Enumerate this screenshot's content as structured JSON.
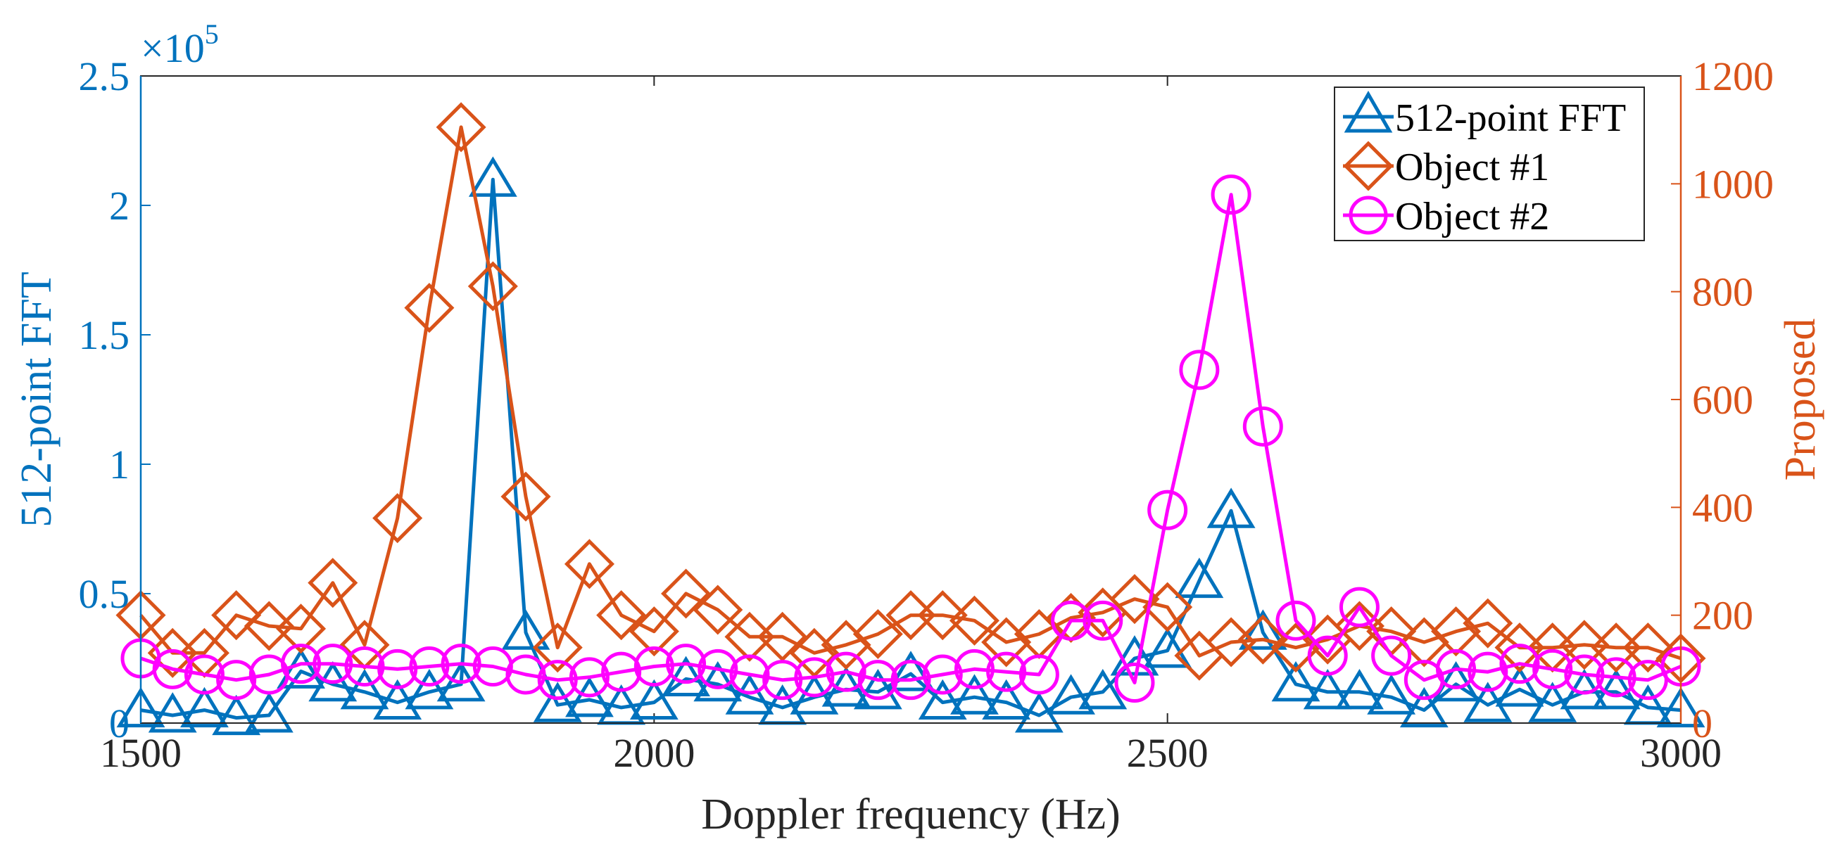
{
  "chart_data": {
    "type": "line",
    "xlabel": "Doppler frequency (Hz)",
    "xlim": [
      1500,
      3000
    ],
    "x_ticks": [
      "1500",
      "2000",
      "2500",
      "3000"
    ],
    "x_tick_values": [
      1500,
      2000,
      2500,
      3000
    ],
    "left_axis": {
      "label": "512-point FFT",
      "multiplier": "×10",
      "multiplier_exponent": "5",
      "ylim": [
        0,
        2.5
      ],
      "ticks": [
        "0",
        "0.5",
        "1",
        "1.5",
        "2",
        "2.5"
      ],
      "tick_values": [
        0,
        0.5,
        1,
        1.5,
        2,
        2.5
      ],
      "color": "#0072BD"
    },
    "right_axis": {
      "label": "Proposed",
      "ylim": [
        0,
        1200
      ],
      "ticks": [
        "0",
        "200",
        "400",
        "600",
        "800",
        "1000",
        "1200"
      ],
      "tick_values": [
        0,
        200,
        400,
        600,
        800,
        1000,
        1200
      ],
      "color": "#D95319"
    },
    "legend_position": "top-right",
    "series": [
      {
        "name": "512-point FFT",
        "axis": "left",
        "marker": "triangle",
        "color": "#0072BD",
        "x": [
          1500,
          1531,
          1562,
          1593,
          1625,
          1656,
          1687,
          1718,
          1750,
          1781,
          1812,
          1843,
          1875,
          1906,
          1937,
          1968,
          2000,
          2031,
          2062,
          2093,
          2125,
          2156,
          2187,
          2218,
          2250,
          2281,
          2312,
          2343,
          2375,
          2406,
          2437,
          2468,
          2500,
          2531,
          2562,
          2593,
          2625,
          2656,
          2687,
          2718,
          2750,
          2781,
          2812,
          2843,
          2875,
          2906,
          2937,
          2968,
          3000
        ],
        "y": [
          0.05,
          0.03,
          0.05,
          0.02,
          0.03,
          0.2,
          0.15,
          0.12,
          0.08,
          0.12,
          0.15,
          2.1,
          0.35,
          0.07,
          0.09,
          0.06,
          0.08,
          0.17,
          0.15,
          0.1,
          0.06,
          0.1,
          0.13,
          0.12,
          0.19,
          0.08,
          0.1,
          0.08,
          0.03,
          0.1,
          0.12,
          0.25,
          0.28,
          0.55,
          0.82,
          0.35,
          0.15,
          0.12,
          0.12,
          0.1,
          0.05,
          0.15,
          0.07,
          0.13,
          0.07,
          0.12,
          0.12,
          0.06,
          0.05
        ]
      },
      {
        "name": "Object #1",
        "axis": "right",
        "marker": "diamond",
        "color": "#D95319",
        "x": [
          1500,
          1531,
          1562,
          1593,
          1625,
          1656,
          1687,
          1718,
          1750,
          1781,
          1812,
          1843,
          1875,
          1906,
          1937,
          1968,
          2000,
          2031,
          2062,
          2093,
          2125,
          2156,
          2187,
          2218,
          2250,
          2281,
          2312,
          2343,
          2375,
          2406,
          2437,
          2468,
          2500,
          2531,
          2562,
          2593,
          2625,
          2656,
          2687,
          2718,
          2750,
          2781,
          2812,
          2843,
          2875,
          2906,
          2937,
          2968,
          3000
        ],
        "y": [
          200,
          130,
          130,
          200,
          180,
          175,
          260,
          145,
          380,
          770,
          1105,
          810,
          420,
          140,
          295,
          200,
          170,
          240,
          210,
          160,
          160,
          130,
          145,
          165,
          200,
          200,
          190,
          150,
          165,
          195,
          205,
          230,
          215,
          125,
          150,
          155,
          140,
          155,
          180,
          170,
          150,
          170,
          185,
          140,
          140,
          145,
          140,
          140,
          120
        ]
      },
      {
        "name": "Object #2",
        "axis": "right",
        "marker": "circle",
        "color": "#FF00FF",
        "x": [
          1500,
          1531,
          1562,
          1593,
          1625,
          1656,
          1687,
          1718,
          1750,
          1781,
          1812,
          1843,
          1875,
          1906,
          1937,
          1968,
          2000,
          2031,
          2062,
          2093,
          2125,
          2156,
          2187,
          2218,
          2250,
          2281,
          2312,
          2343,
          2375,
          2406,
          2437,
          2468,
          2500,
          2531,
          2562,
          2593,
          2625,
          2656,
          2687,
          2718,
          2750,
          2781,
          2812,
          2843,
          2875,
          2906,
          2937,
          2968,
          3000
        ],
        "y": [
          120,
          100,
          90,
          80,
          90,
          110,
          110,
          105,
          100,
          105,
          110,
          105,
          90,
          80,
          85,
          95,
          105,
          110,
          100,
          90,
          80,
          85,
          95,
          80,
          80,
          90,
          100,
          95,
          90,
          190,
          190,
          75,
          395,
          655,
          980,
          550,
          190,
          125,
          215,
          125,
          80,
          100,
          95,
          110,
          100,
          90,
          85,
          80,
          105
        ]
      }
    ]
  }
}
